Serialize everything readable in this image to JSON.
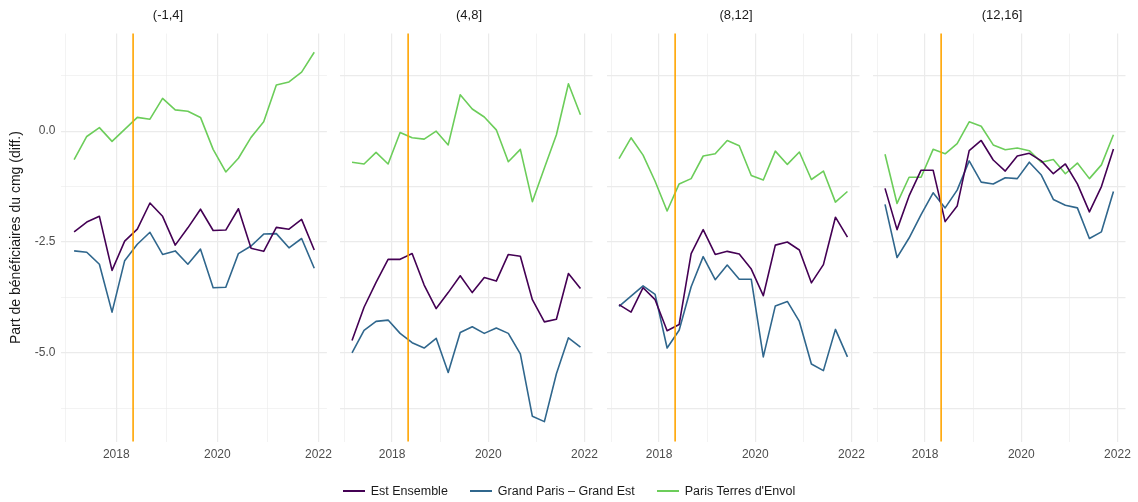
{
  "chart_data": [
    {
      "type": "line",
      "title": "(-1,4]",
      "ylabel": "Part de bénéficiaires du cmg (diff.)",
      "legend": "bottom",
      "grid": true,
      "x": [
        "2017-03",
        "2017-06",
        "2017-09",
        "2017-12",
        "2018-03",
        "2018-06",
        "2018-09",
        "2018-12",
        "2019-03",
        "2019-06",
        "2019-09",
        "2019-12",
        "2020-03",
        "2020-06",
        "2020-09",
        "2020-12",
        "2021-03",
        "2021-06",
        "2021-09",
        "2021-12"
      ],
      "xlim": [
        "2016-12",
        "2022-03"
      ],
      "xticks": [
        {
          "value": "2017",
          "label": null
        },
        "2018",
        {
          "value": "2019",
          "label": null
        },
        "2020",
        {
          "value": "2021",
          "label": null
        },
        "2022"
      ],
      "ylim": [
        -7,
        2.2
      ],
      "yticks": [
        {
          "value": 1.25,
          "label": null
        },
        {
          "value": 0,
          "label": "0.0"
        },
        {
          "value": -1.25,
          "label": null
        },
        {
          "value": -2.5,
          "label": "-2.5"
        },
        {
          "value": -3.75,
          "label": null
        },
        {
          "value": -5,
          "label": "-5.0"
        },
        {
          "value": -6.25,
          "label": null
        }
      ],
      "ref_lines": [
        {
          "axis": "x",
          "value": "2018-05",
          "color": "#ffa500"
        }
      ],
      "series": [
        {
          "name": "Est Ensemble",
          "color": "#440154",
          "values": [
            -2.27,
            -2.05,
            -1.92,
            -3.14,
            -2.48,
            -2.21,
            -1.62,
            -1.92,
            -2.57,
            -2.18,
            -1.76,
            -2.24,
            -2.23,
            -1.75,
            -2.64,
            -2.71,
            -2.17,
            -2.21,
            -1.99,
            -2.68
          ]
        },
        {
          "name": "Grand Paris – Grand Est",
          "color": "#30678d",
          "values": [
            -2.7,
            -2.73,
            -3.0,
            -4.08,
            -2.92,
            -2.55,
            -2.28,
            -2.78,
            -2.7,
            -3.0,
            -2.66,
            -3.53,
            -3.52,
            -2.76,
            -2.59,
            -2.32,
            -2.31,
            -2.63,
            -2.42,
            -3.09
          ]
        },
        {
          "name": "Paris Terres d'Envol",
          "color": "#6ccd5a",
          "values": [
            -0.64,
            -0.12,
            0.08,
            -0.23,
            0.04,
            0.31,
            0.27,
            0.74,
            0.48,
            0.45,
            0.31,
            -0.41,
            -0.92,
            -0.61,
            -0.14,
            0.21,
            1.04,
            1.11,
            1.33,
            1.78
          ]
        }
      ]
    },
    {
      "type": "line",
      "title": "(4,8]",
      "grid": true,
      "tick_labels": "x",
      "x": [
        "2017-03",
        "2017-06",
        "2017-09",
        "2017-12",
        "2018-03",
        "2018-06",
        "2018-09",
        "2018-12",
        "2019-03",
        "2019-06",
        "2019-09",
        "2019-12",
        "2020-03",
        "2020-06",
        "2020-09",
        "2020-12",
        "2021-03",
        "2021-06",
        "2021-09",
        "2021-12"
      ],
      "xlim": [
        "2016-12",
        "2022-03"
      ],
      "xticks": [
        {
          "value": "2017",
          "label": null
        },
        "2018",
        {
          "value": "2019",
          "label": null
        },
        "2020",
        {
          "value": "2021",
          "label": null
        },
        "2022"
      ],
      "ylim": [
        -7,
        2.2
      ],
      "yticks": [
        1.25,
        0,
        -1.25,
        -2.5,
        -3.75,
        -5,
        -6.25
      ],
      "ref_lines": [
        {
          "axis": "x",
          "value": "2018-05",
          "color": "#ffa500"
        }
      ],
      "series": [
        {
          "color": "#440154",
          "values": [
            -4.72,
            -3.97,
            -3.41,
            -2.89,
            -2.89,
            -2.76,
            -3.47,
            -4.0,
            -3.64,
            -3.26,
            -3.64,
            -3.3,
            -3.38,
            -2.78,
            -2.82,
            -3.8,
            -4.3,
            -4.24,
            -3.21,
            -3.55
          ]
        },
        {
          "color": "#30678d",
          "values": [
            -5.0,
            -4.49,
            -4.29,
            -4.26,
            -4.56,
            -4.77,
            -4.89,
            -4.67,
            -5.44,
            -4.54,
            -4.41,
            -4.56,
            -4.44,
            -4.56,
            -5.02,
            -6.43,
            -6.55,
            -5.47,
            -4.66,
            -4.87
          ]
        },
        {
          "color": "#6ccd5a",
          "values": [
            -0.7,
            -0.74,
            -0.48,
            -0.74,
            -0.03,
            -0.15,
            -0.18,
            0.0,
            -0.31,
            0.82,
            0.5,
            0.32,
            0.03,
            -0.69,
            -0.41,
            -1.59,
            -0.83,
            -0.08,
            1.07,
            0.37
          ]
        }
      ]
    },
    {
      "type": "line",
      "title": "(8,12]",
      "grid": true,
      "tick_labels": "x",
      "x": [
        "2017-03",
        "2017-06",
        "2017-09",
        "2017-12",
        "2018-03",
        "2018-06",
        "2018-09",
        "2018-12",
        "2019-03",
        "2019-06",
        "2019-09",
        "2019-12",
        "2020-03",
        "2020-06",
        "2020-09",
        "2020-12",
        "2021-03",
        "2021-06",
        "2021-09",
        "2021-12"
      ],
      "xlim": [
        "2016-12",
        "2022-03"
      ],
      "xticks": [
        {
          "value": "2017",
          "label": null
        },
        "2018",
        {
          "value": "2019",
          "label": null
        },
        "2020",
        {
          "value": "2021",
          "label": null
        },
        "2022"
      ],
      "ylim": [
        -7,
        2.2
      ],
      "yticks": [
        1.25,
        0,
        -1.25,
        -2.5,
        -3.75,
        -5,
        -6.25
      ],
      "ref_lines": [
        {
          "axis": "x",
          "value": "2018-05",
          "color": "#ffa500"
        }
      ],
      "series": [
        {
          "color": "#440154",
          "values": [
            -3.91,
            -4.08,
            -3.53,
            -3.8,
            -4.5,
            -4.36,
            -2.76,
            -2.22,
            -2.78,
            -2.71,
            -2.77,
            -3.11,
            -3.71,
            -2.57,
            -2.5,
            -2.68,
            -3.42,
            -3.01,
            -1.94,
            -2.39
          ]
        },
        {
          "color": "#30678d",
          "values": [
            -3.95,
            -3.72,
            -3.49,
            -3.68,
            -4.89,
            -4.49,
            -3.51,
            -2.83,
            -3.35,
            -3.02,
            -3.34,
            -3.34,
            -5.09,
            -3.94,
            -3.84,
            -4.29,
            -5.25,
            -5.4,
            -4.47,
            -5.09
          ]
        },
        {
          "color": "#6ccd5a",
          "values": [
            -0.62,
            -0.15,
            -0.54,
            -1.13,
            -1.8,
            -1.19,
            -1.07,
            -0.56,
            -0.51,
            -0.21,
            -0.33,
            -1.0,
            -1.1,
            -0.45,
            -0.75,
            -0.47,
            -1.09,
            -0.9,
            -1.6,
            -1.36
          ]
        }
      ]
    },
    {
      "type": "line",
      "title": "(12,16]",
      "grid": true,
      "tick_labels": "x",
      "x": [
        "2017-03",
        "2017-06",
        "2017-09",
        "2017-12",
        "2018-03",
        "2018-06",
        "2018-09",
        "2018-12",
        "2019-03",
        "2019-06",
        "2019-09",
        "2019-12",
        "2020-03",
        "2020-06",
        "2020-09",
        "2020-12",
        "2021-03",
        "2021-06",
        "2021-09",
        "2021-12"
      ],
      "xlim": [
        "2016-12",
        "2022-03"
      ],
      "xticks": [
        {
          "value": "2017",
          "label": null
        },
        "2018",
        {
          "value": "2019",
          "label": null
        },
        "2020",
        {
          "value": "2021",
          "label": null
        },
        "2022"
      ],
      "ylim": [
        -7,
        2.2
      ],
      "yticks": [
        1.25,
        0,
        -1.25,
        -2.5,
        -3.75,
        -5,
        -6.25
      ],
      "ref_lines": [
        {
          "axis": "x",
          "value": "2018-05",
          "color": "#ffa500"
        }
      ],
      "series": [
        {
          "color": "#440154",
          "values": [
            -1.29,
            -2.22,
            -1.46,
            -0.88,
            -0.88,
            -2.04,
            -1.69,
            -0.44,
            -0.21,
            -0.65,
            -0.9,
            -0.56,
            -0.5,
            -0.67,
            -0.96,
            -0.74,
            -1.19,
            -1.82,
            -1.25,
            -0.4
          ]
        },
        {
          "color": "#30678d",
          "values": [
            -1.65,
            -2.85,
            -2.41,
            -1.88,
            -1.39,
            -1.73,
            -1.33,
            -0.67,
            -1.15,
            -1.19,
            -1.05,
            -1.07,
            -0.7,
            -0.99,
            -1.54,
            -1.67,
            -1.73,
            -2.42,
            -2.27,
            -1.36
          ]
        },
        {
          "color": "#6ccd5a",
          "values": [
            -0.52,
            -1.63,
            -1.04,
            -1.04,
            -0.41,
            -0.51,
            -0.28,
            0.21,
            0.11,
            -0.31,
            -0.42,
            -0.38,
            -0.44,
            -0.7,
            -0.64,
            -0.96,
            -0.72,
            -1.07,
            -0.76,
            -0.08
          ]
        }
      ]
    }
  ]
}
